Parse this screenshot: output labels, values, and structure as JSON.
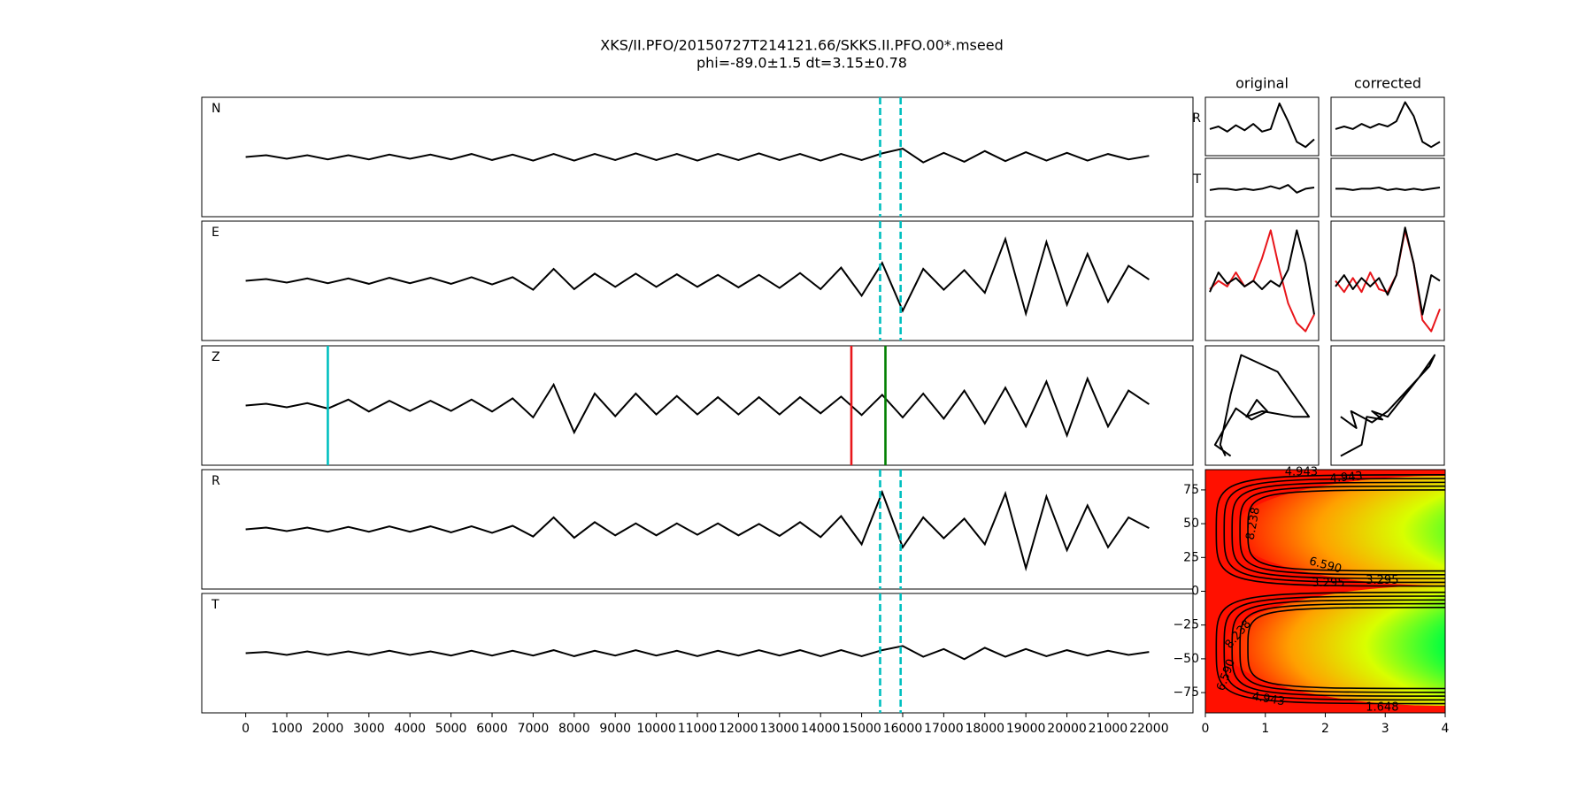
{
  "title": [
    "XKS/II.PFO/20150727T214121.66/SKKS.II.PFO.00*.mseed",
    "phi=-89.0±1.5 dt=3.15±0.78"
  ],
  "traces": {
    "xlim": [
      -1070,
      23070
    ],
    "ylim": [
      -1,
      1
    ],
    "xticks": [
      0,
      1000,
      2000,
      3000,
      4000,
      5000,
      6000,
      7000,
      8000,
      9000,
      10000,
      11000,
      12000,
      13000,
      14000,
      15000,
      16000,
      17000,
      18000,
      19000,
      20000,
      21000,
      22000
    ],
    "x": [
      0,
      500,
      1000,
      1500,
      2000,
      2500,
      3000,
      3500,
      4000,
      4500,
      5000,
      5500,
      6000,
      6500,
      7000,
      7500,
      8000,
      8500,
      9000,
      9500,
      10000,
      10500,
      11000,
      11500,
      12000,
      12500,
      13000,
      13500,
      14000,
      14500,
      15000,
      15500,
      16000,
      16500,
      17000,
      17500,
      18000,
      18500,
      19000,
      19500,
      20000,
      20500,
      21000,
      21500,
      22000
    ],
    "panels": [
      {
        "name": "N",
        "values": [
          0,
          0.03,
          -0.03,
          0.03,
          -0.04,
          0.03,
          -0.04,
          0.04,
          -0.03,
          0.04,
          -0.04,
          0.05,
          -0.05,
          0.04,
          -0.06,
          0.05,
          -0.06,
          0.05,
          -0.05,
          0.06,
          -0.05,
          0.05,
          -0.06,
          0.05,
          -0.05,
          0.06,
          -0.05,
          0.05,
          -0.06,
          0.05,
          -0.05,
          0.06,
          0.14,
          -0.09,
          0.07,
          -0.08,
          0.1,
          -0.07,
          0.08,
          -0.06,
          0.07,
          -0.06,
          0.05,
          -0.04,
          0.02
        ],
        "vlines": [
          {
            "x": 15450,
            "color": "#00bfbf",
            "dashed": true
          },
          {
            "x": 15950,
            "color": "#00bfbf",
            "dashed": true
          }
        ]
      },
      {
        "name": "E",
        "values": [
          0,
          0.03,
          -0.03,
          0.04,
          -0.04,
          0.04,
          -0.05,
          0.05,
          -0.04,
          0.05,
          -0.05,
          0.06,
          -0.06,
          0.06,
          -0.15,
          0.2,
          -0.14,
          0.12,
          -0.1,
          0.12,
          -0.1,
          0.11,
          -0.1,
          0.1,
          -0.11,
          0.1,
          -0.12,
          0.13,
          -0.14,
          0.22,
          -0.25,
          0.3,
          -0.5,
          0.2,
          -0.15,
          0.18,
          -0.2,
          0.7,
          -0.55,
          0.65,
          -0.4,
          0.45,
          -0.35,
          0.25,
          0.02
        ],
        "vlines": [
          {
            "x": 15450,
            "color": "#00bfbf",
            "dashed": true
          },
          {
            "x": 15950,
            "color": "#00bfbf",
            "dashed": true
          }
        ]
      },
      {
        "name": "Z",
        "values": [
          0,
          0.03,
          -0.03,
          0.04,
          -0.05,
          0.1,
          -0.1,
          0.08,
          -0.09,
          0.08,
          -0.09,
          0.1,
          -0.1,
          0.12,
          -0.2,
          0.35,
          -0.45,
          0.2,
          -0.18,
          0.2,
          -0.15,
          0.16,
          -0.15,
          0.14,
          -0.15,
          0.14,
          -0.15,
          0.14,
          -0.13,
          0.15,
          -0.16,
          0.18,
          -0.2,
          0.2,
          -0.22,
          0.25,
          -0.3,
          0.3,
          -0.35,
          0.4,
          -0.5,
          0.45,
          -0.35,
          0.25,
          0.02
        ],
        "vlines": [
          {
            "x": 2000,
            "color": "#00bfbf",
            "dashed": false
          },
          {
            "x": 14750,
            "color": "#e8161b",
            "dashed": false
          },
          {
            "x": 15580,
            "color": "#007f00",
            "dashed": false
          }
        ]
      },
      {
        "name": "R",
        "values": [
          0,
          0.03,
          -0.03,
          0.03,
          -0.04,
          0.04,
          -0.04,
          0.05,
          -0.04,
          0.05,
          -0.05,
          0.05,
          -0.06,
          0.06,
          -0.12,
          0.2,
          -0.14,
          0.12,
          -0.1,
          0.1,
          -0.1,
          0.1,
          -0.09,
          0.1,
          -0.1,
          0.09,
          -0.11,
          0.12,
          -0.13,
          0.22,
          -0.25,
          0.62,
          -0.3,
          0.2,
          -0.15,
          0.18,
          -0.25,
          0.6,
          -0.65,
          0.55,
          -0.35,
          0.4,
          -0.3,
          0.2,
          0.02
        ],
        "vlines": [
          {
            "x": 15450,
            "color": "#00bfbf",
            "dashed": true
          },
          {
            "x": 15950,
            "color": "#00bfbf",
            "dashed": true
          }
        ]
      },
      {
        "name": "T",
        "values": [
          0,
          0.02,
          -0.03,
          0.03,
          -0.03,
          0.03,
          -0.03,
          0.04,
          -0.03,
          0.03,
          -0.04,
          0.04,
          -0.04,
          0.04,
          -0.04,
          0.05,
          -0.05,
          0.04,
          -0.04,
          0.05,
          -0.04,
          0.04,
          -0.05,
          0.04,
          -0.04,
          0.05,
          -0.04,
          0.05,
          -0.05,
          0.05,
          -0.05,
          0.05,
          0.12,
          -0.06,
          0.07,
          -0.1,
          0.09,
          -0.06,
          0.07,
          -0.05,
          0.05,
          -0.04,
          0.04,
          -0.03,
          0.02
        ],
        "vlines": [
          {
            "x": 15450,
            "color": "#00bfbf",
            "dashed": true
          },
          {
            "x": 15950,
            "color": "#00bfbf",
            "dashed": true
          }
        ]
      }
    ]
  },
  "columns": [
    "original",
    "corrected"
  ],
  "row_labels": [
    "R",
    "T"
  ],
  "small_ylim": [
    -1,
    1
  ],
  "small_panels": [
    {
      "series": [
        {
          "color": "#000000",
          "values": [
            -0.1,
            0.0,
            -0.2,
            0.05,
            -0.15,
            0.1,
            -0.2,
            -0.1,
            0.9,
            0.2,
            -0.6,
            -0.8,
            -0.5
          ]
        }
      ]
    },
    {
      "series": [
        {
          "color": "#000000",
          "values": [
            -0.1,
            0.0,
            -0.1,
            0.1,
            -0.05,
            0.1,
            0.0,
            0.2,
            0.95,
            0.4,
            -0.6,
            -0.8,
            -0.6
          ]
        }
      ]
    },
    {
      "series": [
        {
          "color": "#000000",
          "values": [
            -0.1,
            -0.05,
            -0.05,
            -0.1,
            -0.05,
            -0.1,
            -0.05,
            0.05,
            -0.05,
            0.1,
            -0.2,
            -0.05,
            0.0
          ]
        }
      ]
    },
    {
      "series": [
        {
          "color": "#000000",
          "values": [
            -0.05,
            -0.05,
            -0.1,
            -0.05,
            -0.05,
            0.0,
            -0.1,
            -0.05,
            -0.1,
            -0.05,
            -0.1,
            -0.05,
            0.0
          ]
        }
      ]
    },
    {
      "series": [
        {
          "color": "#e8161b",
          "values": [
            -0.15,
            0.0,
            -0.1,
            0.15,
            -0.1,
            0.0,
            0.4,
            0.9,
            0.2,
            -0.4,
            -0.75,
            -0.9,
            -0.6
          ]
        },
        {
          "color": "#000000",
          "values": [
            -0.2,
            0.15,
            -0.05,
            0.05,
            -0.1,
            0.0,
            -0.15,
            0.0,
            -0.1,
            0.2,
            0.9,
            0.3,
            -0.6
          ]
        }
      ]
    },
    {
      "series": [
        {
          "color": "#e8161b",
          "values": [
            0.0,
            -0.2,
            0.05,
            -0.2,
            0.15,
            -0.15,
            -0.2,
            0.1,
            0.9,
            0.3,
            -0.7,
            -0.9,
            -0.5
          ]
        },
        {
          "color": "#000000",
          "values": [
            -0.1,
            0.1,
            -0.15,
            0.05,
            -0.1,
            0.05,
            -0.25,
            0.1,
            0.95,
            0.3,
            -0.6,
            0.1,
            0.0
          ]
        }
      ]
    },
    {
      "series": [
        {
          "color": "#000000",
          "x": [
            -0.7,
            -0.8,
            -0.6,
            -0.4,
            0.3,
            0.9,
            0.6,
            0.0,
            -0.3,
            -0.1,
            0.1,
            -0.2,
            -0.5,
            -0.9,
            -0.6
          ],
          "y": [
            -0.9,
            -0.7,
            0.2,
            0.9,
            0.6,
            -0.2,
            -0.2,
            -0.1,
            -0.2,
            0.1,
            -0.1,
            -0.25,
            -0.05,
            -0.7,
            -0.9
          ]
        }
      ]
    },
    {
      "series": [
        {
          "color": "#000000",
          "x": [
            -0.9,
            -0.6,
            -0.7,
            -0.3,
            0.0,
            0.8,
            0.9,
            0.6,
            0.0,
            -0.3,
            -0.1,
            -0.4,
            -0.5,
            -0.9
          ],
          "y": [
            -0.2,
            -0.4,
            -0.1,
            -0.3,
            -0.1,
            0.7,
            0.9,
            0.5,
            -0.2,
            -0.1,
            -0.25,
            -0.2,
            -0.7,
            -0.9
          ]
        }
      ]
    }
  ],
  "contour": {
    "xlim": [
      0,
      4
    ],
    "ylim": [
      -90,
      90
    ],
    "xticks": [
      0,
      1,
      2,
      3,
      4
    ],
    "yticks": [
      {
        "value": -75,
        "label": "−75"
      },
      {
        "value": -50,
        "label": "−50"
      },
      {
        "value": -25,
        "label": "−25"
      },
      0,
      25,
      50,
      75
    ],
    "levels": [
      1.648,
      3.295,
      4.943,
      {
        "value": 6.59,
        "label": "6.590"
      },
      8.238
    ]
  }
}
